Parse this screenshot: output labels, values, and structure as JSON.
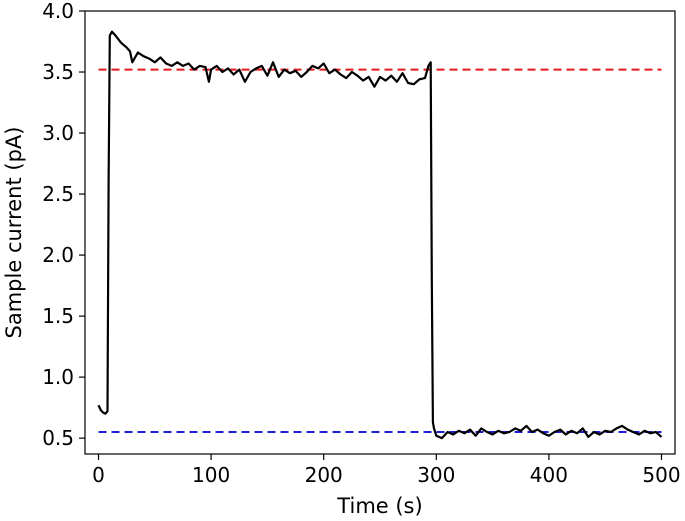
{
  "chart_data": {
    "type": "line",
    "xlabel": "Time (s)",
    "ylabel": "Sample current (pA)",
    "xlim": [
      -12,
      512
    ],
    "ylim": [
      0.37,
      4.0
    ],
    "xticks": [
      0,
      100,
      200,
      300,
      400,
      500
    ],
    "yticks": [
      0.5,
      1.0,
      1.5,
      2.0,
      2.5,
      3.0,
      3.5,
      4.0
    ],
    "xtick_labels": [
      "0",
      "100",
      "200",
      "300",
      "400",
      "500"
    ],
    "ytick_labels": [
      "0.5",
      "1.0",
      "1.5",
      "2.0",
      "2.5",
      "3.0",
      "3.5",
      "4.0"
    ],
    "grid": false,
    "series": [
      {
        "color": "#000000",
        "style": "solid",
        "x": [
          0,
          2,
          4,
          6,
          8,
          9,
          10,
          12,
          15,
          20,
          25,
          28,
          30,
          35,
          40,
          45,
          50,
          55,
          60,
          65,
          70,
          75,
          80,
          85,
          90,
          95,
          98,
          100,
          105,
          110,
          115,
          120,
          125,
          130,
          135,
          140,
          145,
          150,
          155,
          160,
          165,
          170,
          175,
          180,
          185,
          190,
          195,
          200,
          205,
          210,
          215,
          220,
          225,
          230,
          235,
          240,
          245,
          250,
          255,
          260,
          265,
          270,
          275,
          280,
          285,
          290,
          293,
          295,
          296,
          297,
          298,
          300,
          305,
          310,
          315,
          320,
          325,
          330,
          335,
          340,
          345,
          350,
          355,
          360,
          365,
          370,
          375,
          380,
          385,
          390,
          395,
          400,
          405,
          410,
          415,
          420,
          425,
          430,
          435,
          440,
          445,
          450,
          455,
          460,
          465,
          470,
          475,
          480,
          485,
          490,
          495,
          500
        ],
        "y": [
          0.77,
          0.73,
          0.71,
          0.7,
          0.72,
          2.6,
          3.8,
          3.83,
          3.8,
          3.74,
          3.7,
          3.67,
          3.58,
          3.66,
          3.63,
          3.61,
          3.58,
          3.62,
          3.57,
          3.55,
          3.58,
          3.55,
          3.57,
          3.52,
          3.55,
          3.54,
          3.42,
          3.52,
          3.55,
          3.5,
          3.53,
          3.48,
          3.52,
          3.42,
          3.5,
          3.53,
          3.55,
          3.47,
          3.58,
          3.46,
          3.52,
          3.49,
          3.51,
          3.46,
          3.5,
          3.55,
          3.53,
          3.57,
          3.49,
          3.52,
          3.48,
          3.45,
          3.5,
          3.47,
          3.43,
          3.46,
          3.38,
          3.46,
          3.43,
          3.47,
          3.42,
          3.49,
          3.41,
          3.4,
          3.44,
          3.45,
          3.55,
          3.58,
          1.8,
          0.63,
          0.58,
          0.52,
          0.5,
          0.55,
          0.53,
          0.56,
          0.54,
          0.57,
          0.52,
          0.58,
          0.55,
          0.53,
          0.56,
          0.54,
          0.55,
          0.58,
          0.56,
          0.6,
          0.55,
          0.57,
          0.54,
          0.52,
          0.55,
          0.57,
          0.53,
          0.56,
          0.54,
          0.58,
          0.51,
          0.55,
          0.53,
          0.56,
          0.55,
          0.58,
          0.6,
          0.57,
          0.55,
          0.53,
          0.56,
          0.54,
          0.55,
          0.51
        ]
      }
    ],
    "reference_lines": [
      {
        "y": 3.52,
        "color": "#e31a1c",
        "style": "dashed"
      },
      {
        "y": 0.55,
        "color": "#1f1fd6",
        "style": "dashed"
      }
    ]
  }
}
